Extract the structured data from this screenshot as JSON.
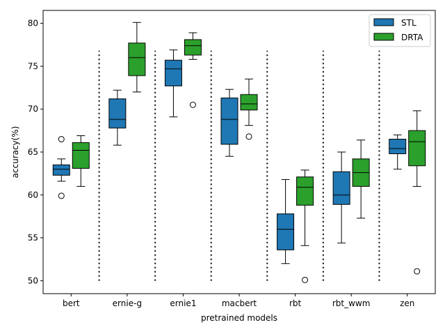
{
  "chart_data": {
    "type": "box",
    "xlabel": "pretrained models",
    "ylabel": "accuracy(%)",
    "ylim": [
      48.5,
      81.5
    ],
    "yticks": [
      50,
      55,
      60,
      65,
      70,
      75,
      80
    ],
    "categories": [
      "bert",
      "ernie-g",
      "ernie1",
      "macbert",
      "rbt",
      "rbt_wwm",
      "zen"
    ],
    "legend_position": "top-right",
    "series": [
      {
        "name": "STL",
        "color": "#1f77b4",
        "boxes": [
          {
            "min": 61.6,
            "q1": 62.3,
            "median": 63.0,
            "q3": 63.5,
            "max": 64.2,
            "outliers": [
              66.5,
              59.9
            ]
          },
          {
            "min": 65.8,
            "q1": 67.8,
            "median": 68.8,
            "q3": 71.2,
            "max": 72.2,
            "outliers": []
          },
          {
            "min": 69.1,
            "q1": 72.7,
            "median": 74.7,
            "q3": 75.7,
            "max": 76.9,
            "outliers": []
          },
          {
            "min": 64.5,
            "q1": 65.9,
            "median": 68.8,
            "q3": 71.3,
            "max": 72.3,
            "outliers": []
          },
          {
            "min": 52.0,
            "q1": 53.6,
            "median": 56.0,
            "q3": 57.8,
            "max": 61.8,
            "outliers": []
          },
          {
            "min": 54.4,
            "q1": 58.9,
            "median": 60.0,
            "q3": 62.7,
            "max": 65.0,
            "outliers": []
          },
          {
            "min": 63.0,
            "q1": 64.8,
            "median": 65.4,
            "q3": 66.5,
            "max": 67.0,
            "outliers": []
          }
        ]
      },
      {
        "name": "DRTA",
        "color": "#2ca02c",
        "boxes": [
          {
            "min": 61.0,
            "q1": 63.1,
            "median": 65.2,
            "q3": 66.1,
            "max": 66.9,
            "outliers": []
          },
          {
            "min": 72.0,
            "q1": 73.9,
            "median": 76.0,
            "q3": 77.7,
            "max": 80.1,
            "outliers": []
          },
          {
            "min": 75.8,
            "q1": 76.3,
            "median": 77.4,
            "q3": 78.1,
            "max": 78.9,
            "outliers": [
              70.5
            ]
          },
          {
            "min": 68.1,
            "q1": 69.9,
            "median": 70.6,
            "q3": 71.7,
            "max": 73.5,
            "outliers": [
              66.8
            ]
          },
          {
            "min": 54.1,
            "q1": 58.8,
            "median": 60.9,
            "q3": 62.1,
            "max": 62.9,
            "outliers": [
              50.1
            ]
          },
          {
            "min": 57.3,
            "q1": 61.0,
            "median": 62.6,
            "q3": 64.2,
            "max": 66.4,
            "outliers": []
          },
          {
            "min": 61.0,
            "q1": 63.4,
            "median": 66.2,
            "q3": 67.5,
            "max": 69.8,
            "outliers": [
              51.1
            ]
          }
        ]
      }
    ],
    "separator_range": [
      50,
      76.8
    ]
  }
}
